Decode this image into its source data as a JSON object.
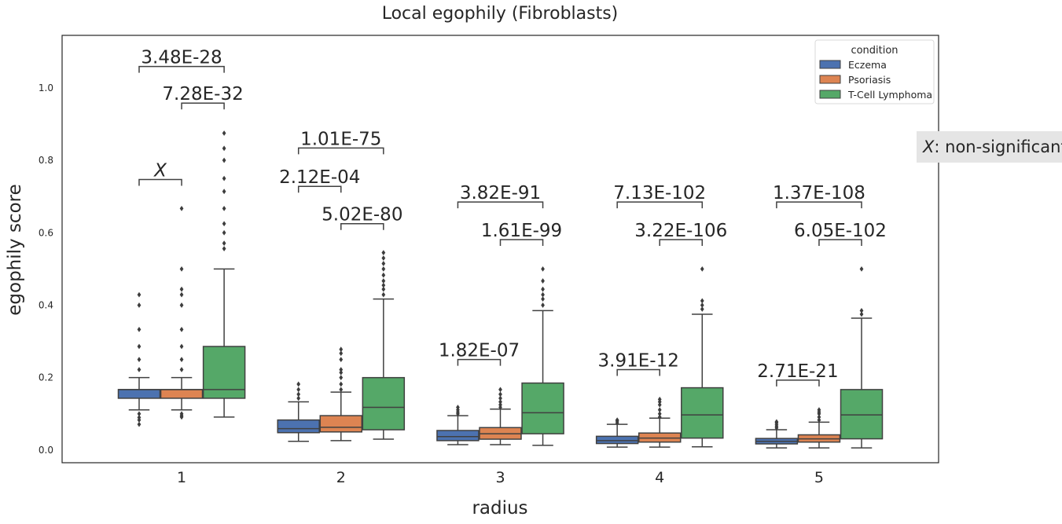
{
  "chart_data": {
    "type": "box",
    "title": "Local egophily (Fibroblasts)",
    "xlabel": "radius",
    "ylabel": "egophily score",
    "categories": [
      "1",
      "2",
      "3",
      "4",
      "5"
    ],
    "ylim": [
      -0.035,
      1.145
    ],
    "yticks": [
      "0.0",
      "0.2",
      "0.4",
      "0.6",
      "0.8",
      "1.0"
    ],
    "legend": {
      "title": "condition",
      "position": "top-right"
    },
    "grid": false,
    "series": [
      {
        "name": "Eczema",
        "color": "#4c72b0",
        "boxes": [
          {
            "q1": 0.143,
            "median": 0.167,
            "q3": 0.167,
            "whisker_low": 0.111,
            "whisker_high": 0.2,
            "outliers": [
              0.1,
              0.09,
              0.083,
              0.071,
              0.222,
              0.25,
              0.286,
              0.333,
              0.4,
              0.429
            ]
          },
          {
            "q1": 0.048,
            "median": 0.059,
            "q3": 0.083,
            "whisker_low": 0.024,
            "whisker_high": 0.133,
            "outliers": [
              0.143,
              0.154,
              0.167,
              0.182
            ]
          },
          {
            "q1": 0.026,
            "median": 0.037,
            "q3": 0.054,
            "whisker_low": 0.015,
            "whisker_high": 0.095,
            "outliers": [
              0.1,
              0.105,
              0.111,
              0.118
            ]
          },
          {
            "q1": 0.018,
            "median": 0.026,
            "q3": 0.038,
            "whisker_low": 0.008,
            "whisker_high": 0.071,
            "outliers": [
              0.075,
              0.08,
              0.083
            ]
          },
          {
            "q1": 0.017,
            "median": 0.024,
            "q3": 0.032,
            "whisker_low": 0.006,
            "whisker_high": 0.056,
            "outliers": [
              0.061,
              0.065,
              0.07,
              0.075,
              0.078
            ]
          }
        ]
      },
      {
        "name": "Psoriasis",
        "color": "#dd8452",
        "boxes": [
          {
            "q1": 0.143,
            "median": 0.167,
            "q3": 0.167,
            "whisker_low": 0.111,
            "whisker_high": 0.2,
            "outliers": [
              0.1,
              0.095,
              0.091,
              0.222,
              0.25,
              0.286,
              0.333,
              0.4,
              0.429,
              0.444,
              0.5,
              0.667
            ]
          },
          {
            "q1": 0.05,
            "median": 0.063,
            "q3": 0.095,
            "whisker_low": 0.026,
            "whisker_high": 0.16,
            "outliers": [
              0.167,
              0.182,
              0.2,
              0.214,
              0.222,
              0.25,
              0.267,
              0.278
            ]
          },
          {
            "q1": 0.03,
            "median": 0.045,
            "q3": 0.062,
            "whisker_low": 0.015,
            "whisker_high": 0.113,
            "outliers": [
              0.118,
              0.125,
              0.133,
              0.143,
              0.154,
              0.167
            ]
          },
          {
            "q1": 0.022,
            "median": 0.033,
            "q3": 0.047,
            "whisker_low": 0.008,
            "whisker_high": 0.088,
            "outliers": [
              0.091,
              0.1,
              0.111,
              0.125,
              0.133,
              0.14
            ]
          },
          {
            "q1": 0.022,
            "median": 0.031,
            "q3": 0.042,
            "whisker_low": 0.006,
            "whisker_high": 0.077,
            "outliers": [
              0.083,
              0.091,
              0.1,
              0.105,
              0.111
            ]
          }
        ]
      },
      {
        "name": "T-Cell Lymphoma",
        "color": "#55a868",
        "boxes": [
          {
            "q1": 0.143,
            "median": 0.167,
            "q3": 0.286,
            "whisker_low": 0.091,
            "whisker_high": 0.5,
            "outliers": [
              0.556,
              0.571,
              0.6,
              0.625,
              0.667,
              0.714,
              0.75,
              0.8,
              0.833,
              0.875
            ]
          },
          {
            "q1": 0.056,
            "median": 0.118,
            "q3": 0.2,
            "whisker_low": 0.03,
            "whisker_high": 0.417,
            "outliers": [
              0.429,
              0.444,
              0.455,
              0.467,
              0.483,
              0.5,
              0.515,
              0.53,
              0.545
            ]
          },
          {
            "q1": 0.045,
            "median": 0.103,
            "q3": 0.185,
            "whisker_low": 0.013,
            "whisker_high": 0.385,
            "outliers": [
              0.4,
              0.417,
              0.429,
              0.444,
              0.467,
              0.5
            ]
          },
          {
            "q1": 0.033,
            "median": 0.097,
            "q3": 0.172,
            "whisker_low": 0.009,
            "whisker_high": 0.375,
            "outliers": [
              0.389,
              0.4,
              0.412,
              0.5
            ]
          },
          {
            "q1": 0.031,
            "median": 0.097,
            "q3": 0.167,
            "whisker_low": 0.006,
            "whisker_high": 0.364,
            "outliers": [
              0.375,
              0.385,
              0.5
            ]
          }
        ]
      }
    ],
    "annotations": [
      {
        "category": "1",
        "pair": [
          "Eczema",
          "Psoriasis"
        ],
        "text": "X",
        "y": 0.747
      },
      {
        "category": "1",
        "pair": [
          "Eczema",
          "T-Cell Lymphoma"
        ],
        "text": "3.48E-28",
        "y": 1.059
      },
      {
        "category": "1",
        "pair": [
          "Psoriasis",
          "T-Cell Lymphoma"
        ],
        "text": "7.28E-32",
        "y": 0.958
      },
      {
        "category": "2",
        "pair": [
          "Eczema",
          "Psoriasis"
        ],
        "text": "2.12E-04",
        "y": 0.728
      },
      {
        "category": "2",
        "pair": [
          "Eczema",
          "T-Cell Lymphoma"
        ],
        "text": "1.01E-75",
        "y": 0.834
      },
      {
        "category": "2",
        "pair": [
          "Psoriasis",
          "T-Cell Lymphoma"
        ],
        "text": "5.02E-80",
        "y": 0.625
      },
      {
        "category": "3",
        "pair": [
          "Eczema",
          "Psoriasis"
        ],
        "text": "1.82E-07",
        "y": 0.25
      },
      {
        "category": "3",
        "pair": [
          "Eczema",
          "T-Cell Lymphoma"
        ],
        "text": "3.82E-91",
        "y": 0.685
      },
      {
        "category": "3",
        "pair": [
          "Psoriasis",
          "T-Cell Lymphoma"
        ],
        "text": "1.61E-99",
        "y": 0.581
      },
      {
        "category": "4",
        "pair": [
          "Eczema",
          "Psoriasis"
        ],
        "text": "3.91E-12",
        "y": 0.222
      },
      {
        "category": "4",
        "pair": [
          "Eczema",
          "T-Cell Lymphoma"
        ],
        "text": "7.13E-102",
        "y": 0.685
      },
      {
        "category": "4",
        "pair": [
          "Psoriasis",
          "T-Cell Lymphoma"
        ],
        "text": "3.22E-106",
        "y": 0.581
      },
      {
        "category": "5",
        "pair": [
          "Eczema",
          "Psoriasis"
        ],
        "text": "2.71E-21",
        "y": 0.193
      },
      {
        "category": "5",
        "pair": [
          "Eczema",
          "T-Cell Lymphoma"
        ],
        "text": "1.37E-108",
        "y": 0.685
      },
      {
        "category": "5",
        "pair": [
          "Psoriasis",
          "T-Cell Lymphoma"
        ],
        "text": "6.05E-102",
        "y": 0.581
      }
    ]
  },
  "note": {
    "symbol": "X",
    "text": ": non-significant"
  }
}
